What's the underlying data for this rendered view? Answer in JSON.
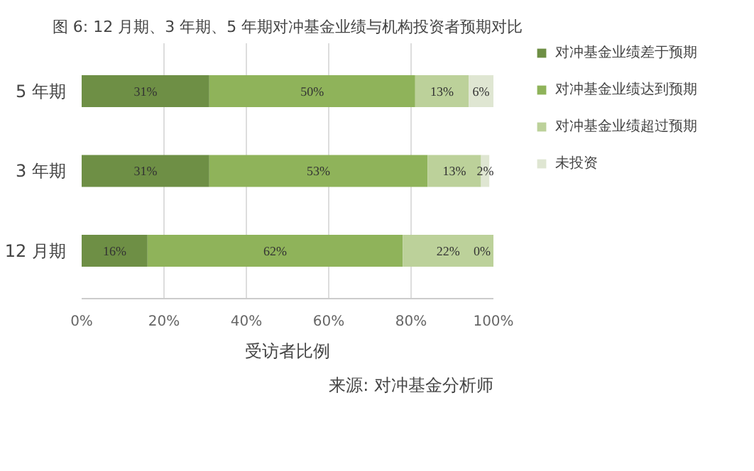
{
  "chart_data": {
    "type": "bar",
    "orientation": "horizontal",
    "stacked": true,
    "title": "图 6: 12 月期、3 年期、5 年期对冲基金业绩与机构投资者预期对比",
    "xlabel": "受访者比例",
    "annotations": [
      "来源: 对冲基金分析师"
    ],
    "categories": [
      "5 年期",
      "3 年期",
      "12 月期"
    ],
    "series": [
      {
        "name": "对冲基金业绩差于预期",
        "color": "#6e8f45",
        "values": [
          31,
          31,
          16
        ],
        "value_labels": [
          "31%",
          "31%",
          "16%"
        ]
      },
      {
        "name": "对冲基金业绩达到预期",
        "color": "#8fb35a",
        "values": [
          50,
          53,
          62
        ],
        "value_labels": [
          "50%",
          "53%",
          "62%"
        ]
      },
      {
        "name": "对冲基金业绩超过预期",
        "color": "#bcd19a",
        "values": [
          13,
          13,
          22
        ],
        "value_labels": [
          "13%",
          "13%",
          "22%"
        ]
      },
      {
        "name": "未投资",
        "color": "#dfe6d2",
        "values": [
          6,
          2,
          0
        ],
        "value_labels": [
          "6%",
          "2%",
          "0%"
        ]
      }
    ],
    "xlim": [
      0,
      100
    ],
    "xticks": [
      {
        "value": 0,
        "label": "0%"
      },
      {
        "value": 20,
        "label": "20%"
      },
      {
        "value": 40,
        "label": "40%"
      },
      {
        "value": 60,
        "label": "60%"
      },
      {
        "value": 80,
        "label": "80%"
      },
      {
        "value": 100,
        "label": "100%"
      }
    ],
    "grid": "x",
    "legend": "right"
  }
}
